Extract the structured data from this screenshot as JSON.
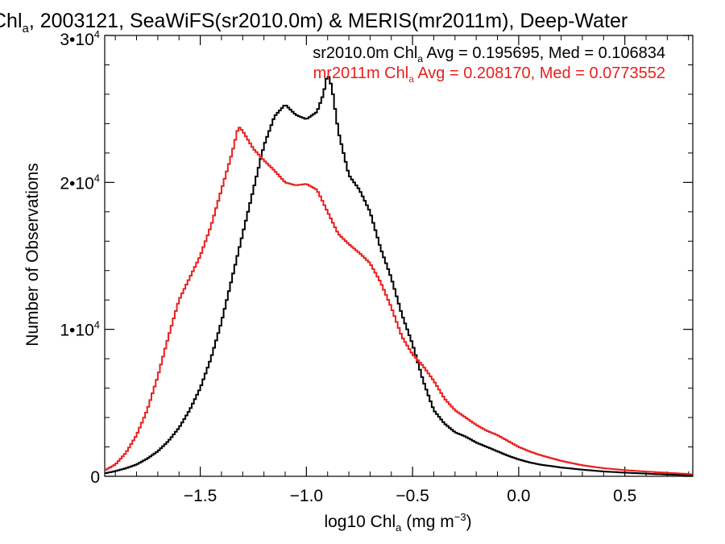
{
  "chart_data": {
    "type": "line",
    "title": {
      "pre": "Chl",
      "sub": "a",
      "post": ", 2003121, SeaWiFS(sr2010.0m) & MERIS(mr2011m), Deep-Water"
    },
    "xlabel": {
      "pre": "log10 Chl",
      "sub": "a",
      "mid": " (mg m",
      "sup": "−3",
      "post": ")"
    },
    "ylabel": "Number of Observations",
    "xlim": [
      -1.95,
      0.82
    ],
    "ylim": [
      0,
      30000
    ],
    "x_ticks": [
      {
        "value": -1.5,
        "label": "−1.5"
      },
      {
        "value": -1.0,
        "label": "−1.0"
      },
      {
        "value": -0.5,
        "label": "−0.5"
      },
      {
        "value": 0.0,
        "label": "0.0"
      },
      {
        "value": 0.5,
        "label": "0.5"
      }
    ],
    "y_ticks": [
      {
        "value": 0,
        "base": "0",
        "exp": ""
      },
      {
        "value": 10000,
        "base": "1•10",
        "exp": "4"
      },
      {
        "value": 20000,
        "base": "2•10",
        "exp": "4"
      },
      {
        "value": 30000,
        "base": "3•10",
        "exp": "4"
      }
    ],
    "grid": false,
    "legend_position": "top-right",
    "series": [
      {
        "name": "sr2010.0m",
        "color": "#000000",
        "stats": {
          "pre": "sr2010.0m Chl",
          "sub": "a",
          "post": " Avg = 0.195695, Med = 0.106834"
        },
        "points": [
          [
            -1.95,
            200
          ],
          [
            -1.9,
            350
          ],
          [
            -1.85,
            550
          ],
          [
            -1.8,
            800
          ],
          [
            -1.75,
            1200
          ],
          [
            -1.7,
            1700
          ],
          [
            -1.65,
            2400
          ],
          [
            -1.6,
            3300
          ],
          [
            -1.55,
            4500
          ],
          [
            -1.5,
            6000
          ],
          [
            -1.45,
            8000
          ],
          [
            -1.4,
            10500
          ],
          [
            -1.35,
            13500
          ],
          [
            -1.3,
            16500
          ],
          [
            -1.25,
            19500
          ],
          [
            -1.2,
            22500
          ],
          [
            -1.15,
            24500
          ],
          [
            -1.1,
            25300
          ],
          [
            -1.05,
            24600
          ],
          [
            -1.0,
            24300
          ],
          [
            -0.95,
            24800
          ],
          [
            -0.92,
            26000
          ],
          [
            -0.9,
            27400
          ],
          [
            -0.88,
            26500
          ],
          [
            -0.85,
            23500
          ],
          [
            -0.8,
            20500
          ],
          [
            -0.75,
            19500
          ],
          [
            -0.7,
            18000
          ],
          [
            -0.65,
            15500
          ],
          [
            -0.6,
            13500
          ],
          [
            -0.55,
            11000
          ],
          [
            -0.5,
            9000
          ],
          [
            -0.45,
            6500
          ],
          [
            -0.4,
            4500
          ],
          [
            -0.35,
            3600
          ],
          [
            -0.3,
            3000
          ],
          [
            -0.25,
            2700
          ],
          [
            -0.2,
            2300
          ],
          [
            -0.15,
            2000
          ],
          [
            -0.1,
            1700
          ],
          [
            -0.05,
            1400
          ],
          [
            0.0,
            1150
          ],
          [
            0.05,
            950
          ],
          [
            0.1,
            800
          ],
          [
            0.2,
            600
          ],
          [
            0.3,
            450
          ],
          [
            0.4,
            330
          ],
          [
            0.5,
            250
          ],
          [
            0.6,
            180
          ],
          [
            0.7,
            120
          ],
          [
            0.82,
            70
          ]
        ]
      },
      {
        "name": "mr2011m",
        "color": "#e8201e",
        "stats": {
          "pre": "mr2011m Chl",
          "sub": "a",
          "post": " Avg = 0.208170, Med = 0.0773552"
        },
        "points": [
          [
            -1.95,
            400
          ],
          [
            -1.9,
            800
          ],
          [
            -1.85,
            1600
          ],
          [
            -1.8,
            2800
          ],
          [
            -1.75,
            4500
          ],
          [
            -1.7,
            6800
          ],
          [
            -1.65,
            9500
          ],
          [
            -1.6,
            12000
          ],
          [
            -1.55,
            13500
          ],
          [
            -1.5,
            15000
          ],
          [
            -1.45,
            17000
          ],
          [
            -1.4,
            19500
          ],
          [
            -1.35,
            22000
          ],
          [
            -1.32,
            23800
          ],
          [
            -1.3,
            23500
          ],
          [
            -1.25,
            22300
          ],
          [
            -1.2,
            21500
          ],
          [
            -1.15,
            20800
          ],
          [
            -1.1,
            20000
          ],
          [
            -1.05,
            19800
          ],
          [
            -1.0,
            19900
          ],
          [
            -0.95,
            19500
          ],
          [
            -0.9,
            18000
          ],
          [
            -0.85,
            16500
          ],
          [
            -0.8,
            15800
          ],
          [
            -0.75,
            15200
          ],
          [
            -0.7,
            14500
          ],
          [
            -0.65,
            13200
          ],
          [
            -0.6,
            11500
          ],
          [
            -0.55,
            9500
          ],
          [
            -0.5,
            8300
          ],
          [
            -0.45,
            7500
          ],
          [
            -0.4,
            6500
          ],
          [
            -0.35,
            5300
          ],
          [
            -0.3,
            4500
          ],
          [
            -0.25,
            4000
          ],
          [
            -0.2,
            3500
          ],
          [
            -0.15,
            3100
          ],
          [
            -0.1,
            2800
          ],
          [
            -0.05,
            2400
          ],
          [
            0.0,
            2000
          ],
          [
            0.05,
            1700
          ],
          [
            0.1,
            1450
          ],
          [
            0.2,
            1050
          ],
          [
            0.3,
            750
          ],
          [
            0.4,
            550
          ],
          [
            0.5,
            420
          ],
          [
            0.6,
            320
          ],
          [
            0.7,
            240
          ],
          [
            0.82,
            140
          ]
        ]
      }
    ]
  }
}
